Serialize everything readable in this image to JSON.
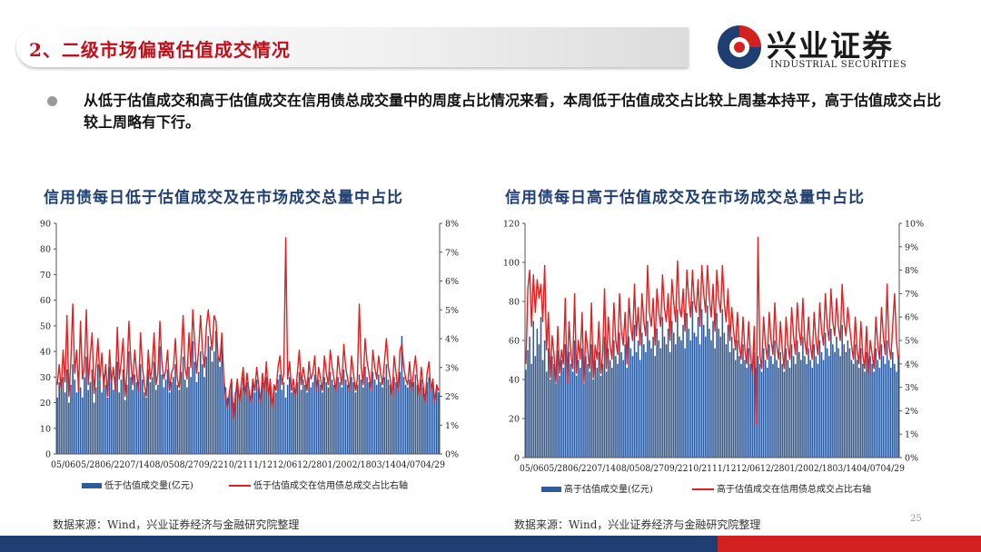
{
  "header": {
    "title": "2、二级市场偏离估值成交情况",
    "logo_cn": "兴业证券",
    "logo_en": "INDUSTRIAL SECURITIES"
  },
  "bullet": {
    "text": "从低于估值成交和高于估值成交在信用债总成交量中的周度占比情况来看，本周低于估值成交占比较上周基本持平，高于估值成交占比较上周略有下行。"
  },
  "footer": {
    "source_left": "数据来源：Wind，兴业证券经济与金融研究院整理",
    "source_right": "数据来源：Wind，兴业证券经济与金融研究院整理",
    "page_number": "25"
  },
  "colors": {
    "bar": "#2f5b9a",
    "line": "#e02020",
    "title": "#1f3f73",
    "accent_red": "#c0101c",
    "navy": "#1f3f73"
  },
  "chart_data": [
    {
      "type": "bar+line",
      "title": "信用债每日低于估值成交及在市场成交总量中占比",
      "x_ticks": [
        "05/06",
        "05/28",
        "06/22",
        "07/14",
        "08/05",
        "08/27",
        "09/22",
        "10/21",
        "11/12",
        "12/06",
        "12/28",
        "01/20",
        "02/18",
        "03/14",
        "04/07",
        "04/29"
      ],
      "x_ticks_text": "05/0605/2806/2207/1408/0508/2709/2210/2111/1212/0612/2801/2002/1803/1404/0704/29",
      "y_left": {
        "min": 0,
        "max": 90,
        "ticks": [
          "0",
          "10",
          "20",
          "30",
          "40",
          "50",
          "60",
          "70",
          "80",
          "90"
        ]
      },
      "y_right": {
        "min": 0,
        "max": 8,
        "ticks": [
          "0%",
          "1%",
          "2%",
          "3%",
          "4%",
          "5%",
          "6%",
          "7%",
          "8%"
        ]
      },
      "series": [
        {
          "name": "低于估值成交量(亿元)",
          "kind": "bar",
          "axis": "left",
          "values": [
            22,
            28,
            25,
            30,
            24,
            33,
            20,
            27,
            35,
            29,
            24,
            31,
            26,
            22,
            30,
            38,
            25,
            28,
            33,
            20,
            26,
            35,
            29,
            24,
            31,
            27,
            22,
            34,
            28,
            25,
            30,
            36,
            24,
            29,
            33,
            21,
            27,
            40,
            30,
            25,
            31,
            28,
            26,
            35,
            29,
            24,
            22,
            33,
            28,
            30,
            36,
            25,
            27,
            42,
            31,
            26,
            29,
            33,
            24,
            28,
            30,
            35,
            27,
            25,
            32,
            38,
            29,
            26,
            34,
            30,
            44,
            36,
            28,
            32,
            40,
            35,
            30,
            38,
            46,
            42,
            36,
            40,
            48,
            38,
            34,
            42,
            30,
            26,
            22,
            25,
            28,
            20,
            24,
            27,
            22,
            26,
            30,
            23,
            28,
            25,
            21,
            27,
            24,
            29,
            26,
            22,
            28,
            25,
            30,
            23,
            27,
            20,
            26,
            24,
            29,
            31,
            25,
            28,
            22,
            27,
            30,
            24,
            26,
            23,
            28,
            32,
            25,
            29,
            27,
            24,
            30,
            26,
            28,
            31,
            25,
            29,
            27,
            24,
            30,
            28,
            26,
            32,
            29,
            27,
            25,
            30,
            28,
            26,
            33,
            29,
            27,
            25,
            30,
            28,
            24,
            27,
            31,
            29,
            26,
            34,
            30,
            28,
            25,
            32,
            29,
            27,
            31,
            28,
            26,
            30,
            35,
            29,
            27,
            24,
            30,
            28,
            25,
            32,
            46,
            30,
            27,
            26,
            29,
            25,
            28,
            31,
            27,
            24,
            29,
            26,
            23,
            28,
            30,
            25,
            27,
            22,
            26,
            24
          ]
        },
        {
          "name": "低于估值成交在信用债总成交占比右轴",
          "kind": "line",
          "axis": "right",
          "values": [
            2.4,
            3.1,
            2.2,
            3.6,
            2.5,
            4.8,
            2.0,
            3.2,
            5.2,
            2.8,
            3.6,
            2.2,
            4.6,
            2.6,
            3.0,
            5.0,
            2.4,
            3.4,
            4.2,
            2.1,
            3.0,
            4.0,
            2.6,
            3.5,
            2.3,
            3.1,
            2.0,
            3.6,
            2.5,
            3.0,
            2.2,
            4.4,
            2.6,
            3.2,
            4.0,
            2.0,
            2.8,
            4.6,
            3.2,
            2.4,
            3.6,
            2.8,
            2.2,
            4.2,
            3.0,
            2.4,
            2.0,
            3.6,
            2.6,
            3.0,
            4.2,
            2.4,
            2.8,
            4.6,
            3.2,
            2.6,
            2.9,
            3.6,
            2.2,
            2.8,
            3.0,
            4.0,
            2.6,
            2.3,
            3.4,
            4.8,
            3.0,
            2.6,
            4.2,
            3.0,
            5.0,
            3.8,
            2.8,
            3.6,
            4.8,
            3.6,
            3.0,
            4.4,
            5.0,
            4.2,
            3.6,
            4.8,
            4.6,
            3.4,
            3.2,
            4.2,
            2.6,
            2.0,
            1.6,
            2.2,
            2.6,
            1.2,
            2.0,
            2.6,
            1.8,
            2.4,
            3.0,
            2.0,
            2.8,
            2.2,
            1.8,
            2.6,
            2.2,
            3.0,
            2.4,
            1.8,
            2.8,
            2.2,
            3.2,
            2.0,
            2.6,
            1.6,
            2.4,
            2.2,
            3.0,
            3.4,
            2.4,
            2.8,
            7.5,
            2.6,
            3.2,
            2.2,
            2.6,
            2.0,
            2.8,
            3.6,
            2.4,
            3.0,
            2.6,
            2.2,
            3.2,
            2.6,
            2.8,
            3.4,
            2.2,
            3.0,
            2.6,
            2.2,
            3.4,
            2.8,
            2.4,
            3.6,
            3.0,
            2.6,
            2.2,
            3.4,
            2.8,
            2.4,
            3.8,
            3.0,
            2.6,
            2.2,
            3.4,
            2.8,
            2.2,
            2.6,
            5.2,
            3.0,
            2.4,
            4.0,
            3.2,
            2.8,
            2.2,
            3.6,
            3.0,
            2.6,
            3.4,
            2.8,
            2.4,
            3.2,
            4.0,
            3.0,
            2.6,
            2.0,
            3.4,
            2.8,
            2.2,
            3.6,
            3.8,
            3.0,
            2.6,
            2.4,
            3.2,
            2.2,
            2.8,
            3.4,
            2.6,
            2.0,
            3.0,
            2.4,
            1.8,
            2.8,
            3.2,
            2.2,
            2.6,
            1.8,
            2.4,
            2.2
          ]
        }
      ]
    },
    {
      "type": "bar+line",
      "title": "信用债每日高于估值成交及在市场成交总量中占比",
      "x_ticks": [
        "05/06",
        "05/28",
        "06/22",
        "07/14",
        "08/05",
        "08/27",
        "09/22",
        "10/21",
        "11/12",
        "12/06",
        "12/28",
        "01/20",
        "02/18",
        "03/14",
        "04/07",
        "04/29"
      ],
      "x_ticks_text": "05/0605/2806/2207/1408/0508/2709/2210/2111/1212/0612/2801/2002/1803/1404/0704/29",
      "y_left": {
        "min": 0,
        "max": 120,
        "ticks": [
          "0",
          "20",
          "40",
          "60",
          "80",
          "100",
          "120"
        ]
      },
      "y_right": {
        "min": 0,
        "max": 10,
        "ticks": [
          "0%",
          "1%",
          "2%",
          "3%",
          "4%",
          "5%",
          "6%",
          "7%",
          "8%",
          "9%",
          "10%"
        ]
      },
      "series": [
        {
          "name": "高于估值成交量(亿元)",
          "kind": "bar",
          "axis": "left",
          "values": [
            45,
            55,
            62,
            48,
            70,
            52,
            66,
            58,
            72,
            50,
            60,
            44,
            56,
            40,
            52,
            48,
            38,
            55,
            42,
            50,
            46,
            58,
            40,
            54,
            48,
            44,
            60,
            42,
            50,
            46,
            56,
            38,
            52,
            48,
            44,
            58,
            40,
            50,
            46,
            54,
            42,
            48,
            62,
            44,
            56,
            50,
            46,
            60,
            52,
            48,
            64,
            54,
            50,
            58,
            46,
            62,
            56,
            52,
            68,
            54,
            60,
            50,
            64,
            58,
            54,
            70,
            60,
            56,
            62,
            52,
            66,
            60,
            56,
            72,
            62,
            58,
            66,
            54,
            70,
            64,
            58,
            76,
            62,
            60,
            68,
            56,
            74,
            66,
            60,
            80,
            64,
            62,
            72,
            58,
            76,
            68,
            62,
            78,
            66,
            60,
            70,
            56,
            74,
            66,
            62,
            76,
            64,
            58,
            68,
            54,
            62,
            56,
            50,
            60,
            52,
            48,
            58,
            50,
            46,
            56,
            48,
            44,
            54,
            46,
            52,
            48,
            44,
            56,
            50,
            46,
            58,
            52,
            48,
            60,
            50,
            46,
            54,
            48,
            44,
            56,
            50,
            46,
            58,
            52,
            48,
            60,
            54,
            50,
            62,
            52,
            48,
            56,
            50,
            46,
            58,
            52,
            48,
            60,
            54,
            50,
            64,
            56,
            52,
            66,
            58,
            54,
            62,
            56,
            52,
            68,
            58,
            54,
            60,
            56,
            50,
            48,
            58,
            50,
            46,
            56,
            48,
            44,
            54,
            46,
            52,
            48,
            44,
            56,
            50,
            46,
            58,
            52,
            48,
            60,
            50,
            46,
            54,
            48,
            44,
            52
          ]
        },
        {
          "name": "高于估值成交在信用债总成交占比右轴",
          "kind": "line",
          "axis": "right",
          "values": [
            4.0,
            7.2,
            8.0,
            5.6,
            7.8,
            6.2,
            7.6,
            6.8,
            7.4,
            5.8,
            8.2,
            4.6,
            6.2,
            3.4,
            5.2,
            4.4,
            3.2,
            5.6,
            3.6,
            4.6,
            4.0,
            6.8,
            3.2,
            5.8,
            4.4,
            3.8,
            7.0,
            3.6,
            5.0,
            4.2,
            6.2,
            3.2,
            5.4,
            4.6,
            3.8,
            6.6,
            3.4,
            4.8,
            4.2,
            5.8,
            3.6,
            4.4,
            7.2,
            3.8,
            6.0,
            4.8,
            4.2,
            6.6,
            5.0,
            4.4,
            7.0,
            5.4,
            4.8,
            6.2,
            4.0,
            6.8,
            5.6,
            5.0,
            7.4,
            5.2,
            6.4,
            4.8,
            7.0,
            5.8,
            5.2,
            8.2,
            6.2,
            5.6,
            6.8,
            4.8,
            7.2,
            6.2,
            5.6,
            7.8,
            6.4,
            5.8,
            7.0,
            5.0,
            7.6,
            6.6,
            5.8,
            8.4,
            6.4,
            6.0,
            7.2,
            5.4,
            8.0,
            6.8,
            6.0,
            8.0,
            6.6,
            6.2,
            7.6,
            5.6,
            8.2,
            7.0,
            6.2,
            8.2,
            6.8,
            6.0,
            7.4,
            5.4,
            8.0,
            6.8,
            6.2,
            8.2,
            6.6,
            5.8,
            7.2,
            5.0,
            6.4,
            5.4,
            4.6,
            6.2,
            4.8,
            4.2,
            6.0,
            4.6,
            4.0,
            5.8,
            4.4,
            3.6,
            5.6,
            1.4,
            9.4,
            4.4,
            3.8,
            6.0,
            4.8,
            4.2,
            6.2,
            5.0,
            4.4,
            6.6,
            4.8,
            4.2,
            5.8,
            4.6,
            3.8,
            6.0,
            4.8,
            4.2,
            6.4,
            5.2,
            4.4,
            6.6,
            5.4,
            4.8,
            6.8,
            5.0,
            4.4,
            6.0,
            4.8,
            4.2,
            6.2,
            5.0,
            4.4,
            6.6,
            5.4,
            4.8,
            7.0,
            5.6,
            5.0,
            7.2,
            5.8,
            5.2,
            6.8,
            5.6,
            5.0,
            7.4,
            5.8,
            5.2,
            6.4,
            5.6,
            4.8,
            4.2,
            6.0,
            4.6,
            4.0,
            5.8,
            4.4,
            3.8,
            5.6,
            3.6,
            5.0,
            4.4,
            3.8,
            6.0,
            4.8,
            4.2,
            6.4,
            5.2,
            4.4,
            7.4,
            4.8,
            4.2,
            5.6,
            7.0,
            5.0,
            4.2
          ]
        }
      ]
    }
  ]
}
